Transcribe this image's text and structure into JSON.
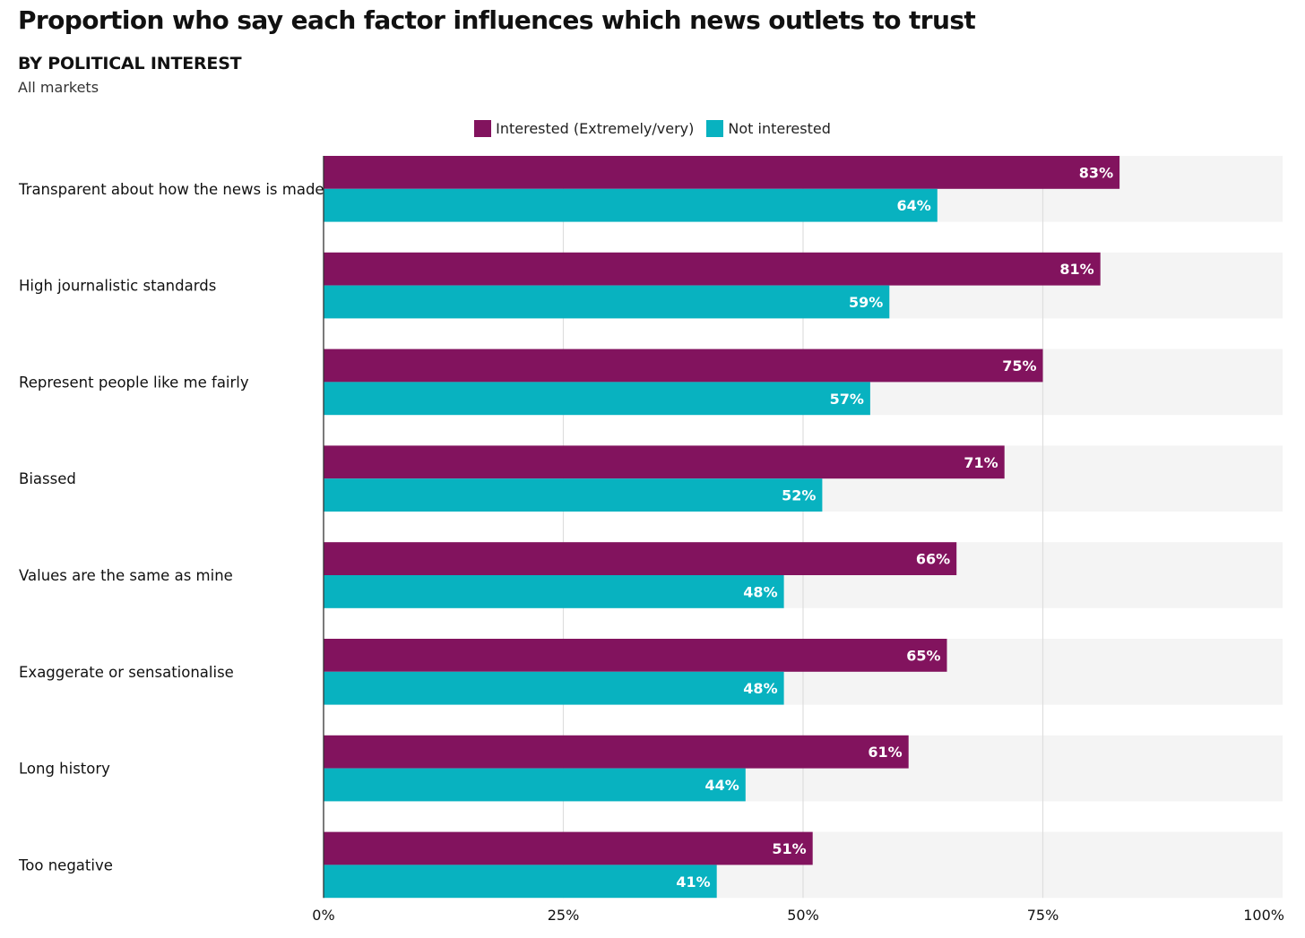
{
  "header": {
    "title": "Proportion who say each factor influences which news outlets to trust",
    "subtitle": "BY POLITICAL INTEREST",
    "note": "All markets"
  },
  "colors": {
    "interested": "#82135e",
    "not_interested": "#08b2c0",
    "band": "#f4f4f4",
    "grid": "#dedede",
    "axis": "#333333"
  },
  "chart_data": {
    "type": "bar",
    "orientation": "horizontal",
    "title": "Proportion who say each factor influences which news outlets to trust",
    "subtitle": "BY POLITICAL INTEREST",
    "xlabel": "",
    "ylabel": "",
    "xlim": [
      0,
      100
    ],
    "ticks": [
      "0%",
      "25%",
      "50%",
      "75%",
      "100%"
    ],
    "tick_values": [
      0,
      25,
      50,
      75,
      100
    ],
    "legend_position": "top-center",
    "categories": [
      "Transparent about how the news is made",
      "High journalistic standards",
      "Represent people like me fairly",
      "Biassed",
      "Values are the same as mine",
      "Exaggerate or sensationalise",
      "Long history",
      "Too negative"
    ],
    "series": [
      {
        "name": "Interested (Extremely/very)",
        "values": [
          83,
          81,
          75,
          71,
          66,
          65,
          61,
          51
        ]
      },
      {
        "name": "Not interested",
        "values": [
          64,
          59,
          57,
          52,
          48,
          48,
          44,
          41
        ]
      }
    ]
  }
}
